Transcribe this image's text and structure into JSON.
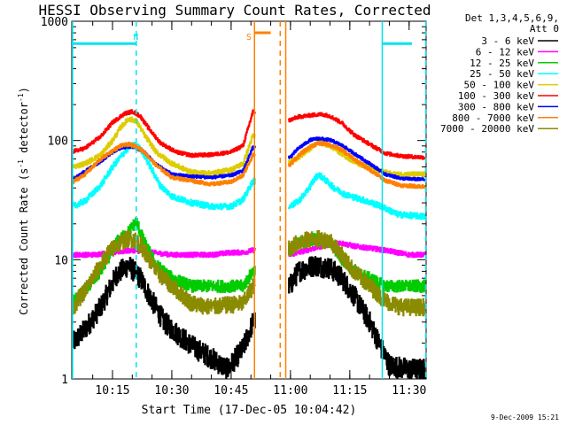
{
  "chart_data": {
    "type": "line",
    "title": "HESSI Observing Summary Count Rates, Corrected",
    "xlabel": "Start Time (17-Dec-05 10:04:42)",
    "ylabel": "Corrected Count Rate (s^-1 detector^-1)",
    "ylabel_parts": [
      "Corrected Count Rate (s",
      "-1",
      " detector",
      "-1",
      ")"
    ],
    "y_scale": "log",
    "ylim": [
      1,
      1000
    ],
    "xlim_minutes": [
      4.7,
      44.3
    ],
    "x_ticks": [
      {
        "minute": 15,
        "label": "10:15"
      },
      {
        "minute": 30,
        "label": "10:30"
      },
      {
        "minute": 45,
        "label": "10:45"
      },
      {
        "minute": 60,
        "label": "11:00"
      },
      {
        "minute": 75,
        "label": "11:15"
      },
      {
        "minute": 90,
        "label": "11:30"
      }
    ],
    "y_ticks": [
      {
        "value": 1,
        "label": "1"
      },
      {
        "value": 10,
        "label": "10"
      },
      {
        "value": 100,
        "label": "100"
      },
      {
        "value": 1000,
        "label": "1000"
      }
    ],
    "legend_header": [
      "Det 1,3,4,5,6,9,",
      "Att 0"
    ],
    "legend_position": "right",
    "gap_minutes": [
      51.0,
      59.5
    ],
    "annotations": [
      {
        "label": "N",
        "minute": 20.9,
        "color": "#00e5ee"
      },
      {
        "label": "S",
        "minute": 49.5,
        "color": "#ff7f00"
      }
    ],
    "markers": {
      "night_color": "#00e5ee",
      "saa_color": "#ff7f00",
      "cyan_solid_minutes": [
        4.9,
        83.2
      ],
      "cyan_dashed_minutes": [
        21.0,
        94.2
      ],
      "orange_solid_minutes": [
        50.9,
        58.8
      ],
      "orange_dashed_minutes": [
        57.4
      ]
    },
    "series": [
      {
        "name": "3 - 6 keV",
        "color": "#000000",
        "noise": 0.09,
        "points": [
          [
            5,
            2
          ],
          [
            8,
            2.6
          ],
          [
            12,
            4
          ],
          [
            16,
            7.5
          ],
          [
            19,
            9
          ],
          [
            22,
            7
          ],
          [
            25,
            4.5
          ],
          [
            28,
            3
          ],
          [
            32,
            2.3
          ],
          [
            36,
            1.8
          ],
          [
            40,
            1.5
          ],
          [
            44,
            1.2
          ],
          [
            48,
            1.8
          ],
          [
            50.5,
            3
          ],
          [
            59.8,
            6
          ],
          [
            62,
            8
          ],
          [
            66,
            9
          ],
          [
            70,
            8.5
          ],
          [
            73,
            7
          ],
          [
            76,
            5
          ],
          [
            80,
            3
          ],
          [
            83,
            1.8
          ],
          [
            85,
            1.3
          ],
          [
            90,
            1.2
          ],
          [
            94,
            1.2
          ]
        ]
      },
      {
        "name": "6 - 12 keV",
        "color": "#ff00ff",
        "noise": 0.02,
        "points": [
          [
            5,
            11
          ],
          [
            10,
            11
          ],
          [
            15,
            11.5
          ],
          [
            20,
            12
          ],
          [
            25,
            11.5
          ],
          [
            30,
            11
          ],
          [
            35,
            11
          ],
          [
            40,
            11
          ],
          [
            45,
            11.5
          ],
          [
            48,
            11.5
          ],
          [
            50.5,
            12
          ],
          [
            59.8,
            11
          ],
          [
            64,
            12
          ],
          [
            68,
            13
          ],
          [
            72,
            14
          ],
          [
            76,
            13
          ],
          [
            80,
            12.5
          ],
          [
            84,
            12
          ],
          [
            90,
            11
          ],
          [
            94,
            11
          ]
        ]
      },
      {
        "name": "12 - 25 keV",
        "color": "#00cc00",
        "noise": 0.05,
        "points": [
          [
            5,
            4.5
          ],
          [
            8,
            5.5
          ],
          [
            12,
            8
          ],
          [
            16,
            14
          ],
          [
            19,
            17
          ],
          [
            21,
            21
          ],
          [
            23,
            14
          ],
          [
            26,
            9
          ],
          [
            30,
            7
          ],
          [
            35,
            6
          ],
          [
            40,
            6
          ],
          [
            45,
            6
          ],
          [
            48,
            6
          ],
          [
            50.5,
            8
          ],
          [
            59.8,
            12
          ],
          [
            62,
            14
          ],
          [
            66,
            15
          ],
          [
            70,
            14
          ],
          [
            73,
            10
          ],
          [
            76,
            8
          ],
          [
            80,
            7
          ],
          [
            84,
            6
          ],
          [
            90,
            6
          ],
          [
            94,
            6
          ]
        ]
      },
      {
        "name": "25 - 50 keV",
        "color": "#00ffff",
        "noise": 0.025,
        "points": [
          [
            5,
            28
          ],
          [
            8,
            31
          ],
          [
            12,
            42
          ],
          [
            15,
            60
          ],
          [
            18,
            80
          ],
          [
            20,
            93
          ],
          [
            22,
            86
          ],
          [
            24,
            65
          ],
          [
            27,
            42
          ],
          [
            30,
            34
          ],
          [
            35,
            30
          ],
          [
            40,
            28
          ],
          [
            45,
            28
          ],
          [
            48,
            32
          ],
          [
            50.5,
            46
          ],
          [
            59.8,
            28
          ],
          [
            62,
            31
          ],
          [
            64,
            37
          ],
          [
            66,
            47
          ],
          [
            67,
            52
          ],
          [
            69,
            46
          ],
          [
            71,
            40
          ],
          [
            74,
            35
          ],
          [
            78,
            32
          ],
          [
            83,
            28
          ],
          [
            87,
            24
          ],
          [
            94,
            23
          ]
        ]
      },
      {
        "name": "50 - 100 keV",
        "color": "#ddcc00",
        "noise": 0.02,
        "points": [
          [
            5,
            60
          ],
          [
            8,
            64
          ],
          [
            12,
            76
          ],
          [
            15,
            100
          ],
          [
            17,
            128
          ],
          [
            19,
            152
          ],
          [
            21,
            146
          ],
          [
            23,
            112
          ],
          [
            26,
            80
          ],
          [
            30,
            64
          ],
          [
            35,
            54
          ],
          [
            40,
            53
          ],
          [
            45,
            57
          ],
          [
            48,
            64
          ],
          [
            50.5,
            110
          ],
          [
            59.8,
            66
          ],
          [
            62,
            72
          ],
          [
            65,
            86
          ],
          [
            67,
            96
          ],
          [
            69,
            93
          ],
          [
            71,
            86
          ],
          [
            74,
            73
          ],
          [
            78,
            62
          ],
          [
            83,
            55
          ],
          [
            86,
            52
          ],
          [
            94,
            52
          ]
        ]
      },
      {
        "name": "100 - 300 keV",
        "color": "#ff0000",
        "noise": 0.015,
        "points": [
          [
            5,
            81
          ],
          [
            8,
            86
          ],
          [
            12,
            108
          ],
          [
            15,
            142
          ],
          [
            18,
            168
          ],
          [
            20,
            175
          ],
          [
            22,
            160
          ],
          [
            24,
            128
          ],
          [
            27,
            96
          ],
          [
            31,
            80
          ],
          [
            35,
            75
          ],
          [
            40,
            76
          ],
          [
            45,
            80
          ],
          [
            48,
            91
          ],
          [
            50.5,
            175
          ],
          [
            59.8,
            148
          ],
          [
            62,
            158
          ],
          [
            66,
            164
          ],
          [
            68,
            166
          ],
          [
            70,
            160
          ],
          [
            73,
            140
          ],
          [
            76,
            112
          ],
          [
            80,
            93
          ],
          [
            84,
            78
          ],
          [
            88,
            74
          ],
          [
            94,
            72
          ]
        ]
      },
      {
        "name": "300 - 800 keV",
        "color": "#0000ff",
        "noise": 0.012,
        "points": [
          [
            5,
            47
          ],
          [
            8,
            55
          ],
          [
            12,
            67
          ],
          [
            15,
            80
          ],
          [
            17,
            86
          ],
          [
            19,
            89
          ],
          [
            21,
            87
          ],
          [
            23,
            80
          ],
          [
            26,
            63
          ],
          [
            30,
            52
          ],
          [
            35,
            50
          ],
          [
            40,
            49
          ],
          [
            45,
            51
          ],
          [
            48,
            56
          ],
          [
            50.5,
            88
          ],
          [
            59.8,
            72
          ],
          [
            62,
            86
          ],
          [
            65,
            101
          ],
          [
            67,
            104
          ],
          [
            70,
            101
          ],
          [
            73,
            91
          ],
          [
            76,
            78
          ],
          [
            80,
            64
          ],
          [
            84,
            52
          ],
          [
            88,
            48
          ],
          [
            94,
            47
          ]
        ]
      },
      {
        "name": "800 - 7000 keV",
        "color": "#ff8000",
        "noise": 0.015,
        "points": [
          [
            5,
            45
          ],
          [
            8,
            52
          ],
          [
            12,
            70
          ],
          [
            15,
            82
          ],
          [
            17,
            90
          ],
          [
            19,
            93
          ],
          [
            21,
            89
          ],
          [
            23,
            80
          ],
          [
            26,
            62
          ],
          [
            30,
            49
          ],
          [
            35,
            46
          ],
          [
            40,
            43
          ],
          [
            45,
            45
          ],
          [
            48,
            51
          ],
          [
            50.5,
            76
          ],
          [
            59.8,
            62
          ],
          [
            62,
            75
          ],
          [
            65,
            89
          ],
          [
            67,
            95
          ],
          [
            70,
            92
          ],
          [
            73,
            83
          ],
          [
            76,
            70
          ],
          [
            80,
            57
          ],
          [
            84,
            46
          ],
          [
            88,
            42
          ],
          [
            94,
            41
          ]
        ]
      },
      {
        "name": "7000 - 20000 keV",
        "color": "#8b8b00",
        "noise": 0.07,
        "points": [
          [
            5,
            4
          ],
          [
            8,
            5.5
          ],
          [
            11,
            8
          ],
          [
            14,
            11.5
          ],
          [
            17,
            14
          ],
          [
            19,
            15
          ],
          [
            21,
            14.5
          ],
          [
            23,
            12
          ],
          [
            26,
            8
          ],
          [
            30,
            6
          ],
          [
            35,
            4.3
          ],
          [
            40,
            4
          ],
          [
            45,
            4.2
          ],
          [
            48,
            4.3
          ],
          [
            50.5,
            6
          ],
          [
            59.8,
            12.5
          ],
          [
            62,
            14
          ],
          [
            66,
            15
          ],
          [
            70,
            14.5
          ],
          [
            72,
            12
          ],
          [
            76,
            8
          ],
          [
            80,
            6
          ],
          [
            84,
            4.5
          ],
          [
            88,
            4
          ],
          [
            94,
            4
          ]
        ]
      }
    ]
  },
  "footer": {
    "timestamp": "9-Dec-2009 15:21"
  }
}
